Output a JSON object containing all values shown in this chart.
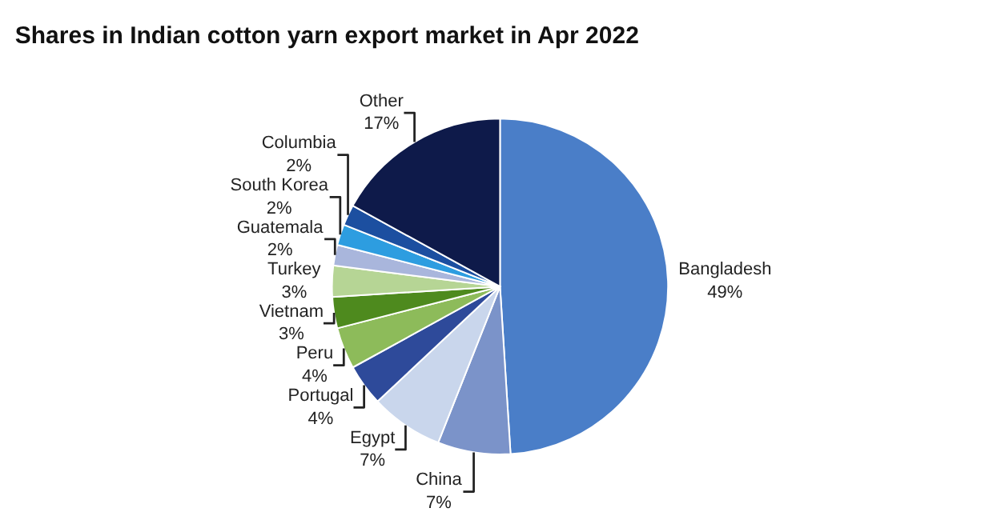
{
  "chart_data": {
    "type": "pie",
    "title": "Shares in Indian cotton yarn export market in Apr 2022",
    "categories": [
      "Bangladesh",
      "China",
      "Egypt",
      "Portugal",
      "Peru",
      "Vietnam",
      "Turkey",
      "Guatemala",
      "South Korea",
      "Columbia",
      "Other"
    ],
    "values": [
      49,
      7,
      7,
      4,
      4,
      3,
      3,
      2,
      2,
      2,
      17
    ],
    "value_labels": [
      "49%",
      "7%",
      "7%",
      "4%",
      "4%",
      "3%",
      "3%",
      "2%",
      "2%",
      "2%",
      "17%"
    ],
    "colors": [
      "#4a7ec8",
      "#7b93c9",
      "#c9d6ec",
      "#2e4a9a",
      "#8dbb5a",
      "#4e8a1e",
      "#b6d595",
      "#a9b6dc",
      "#2d9de0",
      "#1c4fa0",
      "#0e1a4a"
    ],
    "legend": false
  }
}
